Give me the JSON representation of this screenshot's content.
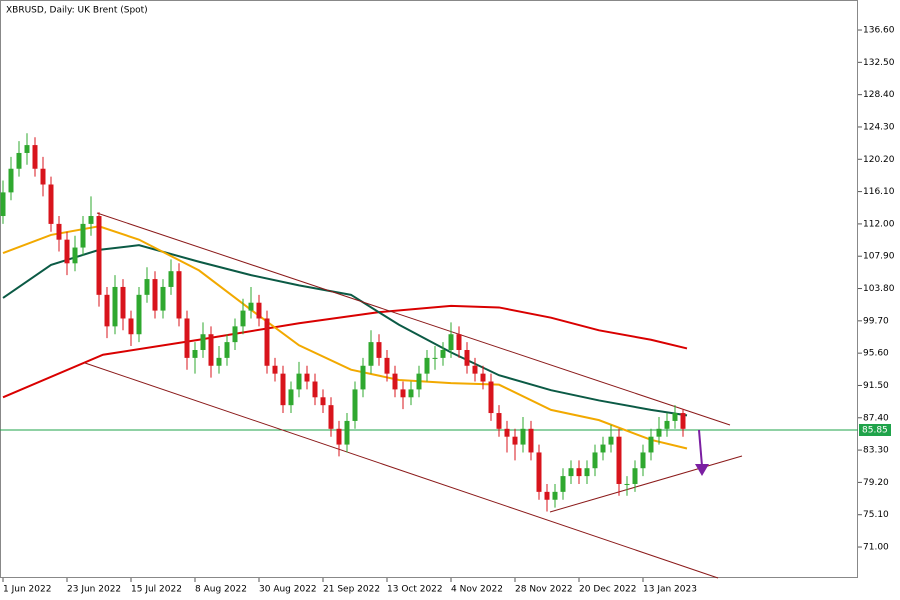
{
  "chart_data": {
    "type": "candlestick",
    "title": "XBRUSD, Daily:  UK Brent (Spot)",
    "up_color": "#2fa82f",
    "down_color": "#d8141c",
    "ylim": [
      67.07,
      140.41
    ],
    "xlim": [
      -0.75,
      213.75
    ],
    "yticks": [
      {
        "value": 136.6,
        "label": "136.60"
      },
      {
        "value": 132.5,
        "label": "132.50"
      },
      {
        "value": 128.4,
        "label": "128.40"
      },
      {
        "value": 124.3,
        "label": "124.30"
      },
      {
        "value": 120.2,
        "label": "120.20"
      },
      {
        "value": 116.1,
        "label": "116.10"
      },
      {
        "value": 112,
        "label": "112.00"
      },
      {
        "value": 107.9,
        "label": "107.90"
      },
      {
        "value": 103.8,
        "label": "103.80"
      },
      {
        "value": 99.7,
        "label": "99.70"
      },
      {
        "value": 95.6,
        "label": "95.60"
      },
      {
        "value": 91.5,
        "label": "91.50"
      },
      {
        "value": 87.4,
        "label": "87.40"
      },
      {
        "value": 83.3,
        "label": "83.30"
      },
      {
        "value": 79.2,
        "label": "79.20"
      },
      {
        "value": 75.1,
        "label": "75.10"
      },
      {
        "value": 71,
        "label": "71.00"
      }
    ],
    "xticks": [
      {
        "value": 0,
        "label": "1 Jun 2022"
      },
      {
        "value": 16,
        "label": "23 Jun 2022"
      },
      {
        "value": 32,
        "label": "15 Jul 2022"
      },
      {
        "value": 48,
        "label": "8 Aug 2022"
      },
      {
        "value": 64,
        "label": "30 Aug 2022"
      },
      {
        "value": 80,
        "label": "21 Sep 2022"
      },
      {
        "value": 96,
        "label": "13 Oct 2022"
      },
      {
        "value": 112,
        "label": "4 Nov 2022"
      },
      {
        "value": 128,
        "label": "28 Nov 2022"
      },
      {
        "value": 144,
        "label": "20 Dec 2022"
      },
      {
        "value": 160,
        "label": "13 Jan 2023"
      }
    ],
    "current_price": 85.85,
    "current_price_color": "#1fa34a",
    "x": [
      0,
      2,
      4,
      6,
      8,
      10,
      12,
      14,
      16,
      18,
      20,
      22,
      24,
      26,
      28,
      30,
      32,
      34,
      36,
      38,
      40,
      42,
      44,
      46,
      48,
      50,
      52,
      54,
      56,
      58,
      60,
      62,
      64,
      66,
      68,
      70,
      72,
      74,
      76,
      78,
      80,
      82,
      84,
      86,
      88,
      90,
      92,
      94,
      96,
      98,
      100,
      102,
      104,
      106,
      108,
      110,
      112,
      114,
      116,
      118,
      120,
      122,
      124,
      126,
      128,
      130,
      132,
      134,
      136,
      138,
      140,
      142,
      144,
      146,
      148,
      150,
      152,
      154,
      156,
      158,
      160,
      162,
      164,
      166,
      168,
      170
    ],
    "ohlc": [
      [
        113,
        117.5,
        112,
        116
      ],
      [
        116,
        120.5,
        115,
        119
      ],
      [
        119,
        122.5,
        118,
        121
      ],
      [
        121,
        123.5,
        119.5,
        122
      ],
      [
        122,
        123,
        118,
        119
      ],
      [
        119,
        120.5,
        115.5,
        117
      ],
      [
        117,
        118,
        111,
        112
      ],
      [
        112,
        113,
        108.5,
        110
      ],
      [
        110,
        111,
        105.5,
        107
      ],
      [
        107,
        110.5,
        106,
        109
      ],
      [
        109,
        113,
        108,
        112
      ],
      [
        112,
        115.5,
        110.5,
        113
      ],
      [
        113,
        113.5,
        101.5,
        103
      ],
      [
        103,
        104,
        97.5,
        99
      ],
      [
        99,
        105.5,
        98,
        104
      ],
      [
        104,
        105,
        98.5,
        100
      ],
      [
        100,
        101,
        96.5,
        98
      ],
      [
        98,
        104,
        97,
        103
      ],
      [
        103,
        106.5,
        102,
        105
      ],
      [
        105,
        106,
        100,
        101
      ],
      [
        101,
        105,
        100,
        104
      ],
      [
        104,
        107.5,
        103,
        106
      ],
      [
        106,
        107,
        99,
        100
      ],
      [
        100,
        101,
        93.5,
        95
      ],
      [
        95,
        97,
        93,
        96
      ],
      [
        96,
        99.5,
        95,
        98
      ],
      [
        98,
        99,
        92.5,
        94
      ],
      [
        94,
        96.5,
        93,
        95
      ],
      [
        95,
        98,
        94,
        97
      ],
      [
        97,
        100,
        96,
        99
      ],
      [
        99,
        102.5,
        98,
        101
      ],
      [
        101,
        104,
        100,
        102
      ],
      [
        102,
        103,
        99,
        100
      ],
      [
        100,
        101,
        93,
        94
      ],
      [
        94,
        95,
        92,
        93
      ],
      [
        93,
        94,
        88,
        89
      ],
      [
        89,
        92,
        88,
        91
      ],
      [
        91,
        94.5,
        90,
        93
      ],
      [
        93,
        94,
        91,
        92
      ],
      [
        92,
        93,
        89,
        90
      ],
      [
        90,
        91,
        88,
        89
      ],
      [
        89,
        90,
        85,
        86
      ],
      [
        86,
        87,
        82.5,
        84
      ],
      [
        84,
        88,
        83,
        87
      ],
      [
        87,
        92,
        86,
        91
      ],
      [
        91,
        95,
        90,
        94
      ],
      [
        94,
        98.5,
        93,
        97
      ],
      [
        97,
        98,
        94,
        95
      ],
      [
        95,
        96,
        92,
        93
      ],
      [
        93,
        94,
        90,
        91
      ],
      [
        91,
        92,
        88.5,
        90
      ],
      [
        90,
        92,
        89,
        91
      ],
      [
        91,
        94,
        90,
        93
      ],
      [
        93,
        96,
        92,
        95
      ],
      [
        95,
        96.5,
        93.5,
        95
      ],
      [
        95,
        97,
        94,
        96
      ],
      [
        96,
        99.5,
        95,
        98
      ],
      [
        98,
        99,
        95,
        96
      ],
      [
        96,
        97,
        93,
        94
      ],
      [
        94,
        95,
        92,
        93
      ],
      [
        93,
        94,
        91,
        92
      ],
      [
        92,
        93,
        87,
        88
      ],
      [
        88,
        89,
        85,
        86
      ],
      [
        86,
        87,
        83,
        85
      ],
      [
        85,
        86,
        82,
        84
      ],
      [
        84,
        87.5,
        83,
        86
      ],
      [
        86,
        87,
        82,
        83
      ],
      [
        83,
        84,
        77,
        78
      ],
      [
        78,
        79,
        75.5,
        77
      ],
      [
        77,
        79,
        76,
        78
      ],
      [
        78,
        81,
        77,
        80
      ],
      [
        80,
        82,
        79,
        81
      ],
      [
        81,
        82,
        79,
        80
      ],
      [
        80,
        82,
        79,
        81
      ],
      [
        81,
        84,
        80,
        83
      ],
      [
        83,
        85,
        82,
        84
      ],
      [
        84,
        86.5,
        83,
        85
      ],
      [
        85,
        86,
        77.5,
        79
      ],
      [
        79,
        80,
        77.5,
        79
      ],
      [
        79,
        82,
        78,
        81
      ],
      [
        81,
        84,
        80,
        83
      ],
      [
        83,
        86,
        82,
        85
      ],
      [
        85,
        87.5,
        84,
        86
      ],
      [
        86,
        88,
        85,
        87
      ],
      [
        87,
        89,
        86,
        88
      ],
      [
        88,
        88.5,
        85,
        86
      ]
    ],
    "moving_averages": [
      {
        "color": "#d90000",
        "x": [
          0,
          25,
          49,
          74,
          94,
          112,
          124,
          137,
          149,
          162,
          171
        ],
        "values": [
          90,
          95.4,
          97.3,
          99.4,
          100.8,
          101.6,
          101.4,
          100.1,
          98.5,
          97.3,
          96.2
        ]
      },
      {
        "color": "#0b5a45",
        "x": [
          0,
          12,
          24,
          34,
          49,
          62,
          74,
          87,
          99,
          112,
          124,
          137,
          149,
          162,
          171
        ],
        "values": [
          102.6,
          106.8,
          108.7,
          109.3,
          107.2,
          105.5,
          104.2,
          103,
          99.2,
          95.7,
          92.8,
          90.9,
          89.6,
          88.4,
          87.7
        ]
      },
      {
        "color": "#f2a900",
        "x": [
          0,
          12,
          24,
          34,
          49,
          62,
          74,
          87,
          99,
          112,
          124,
          137,
          149,
          162,
          171
        ],
        "values": [
          108.3,
          110.6,
          111.7,
          110,
          106.1,
          101.1,
          96.6,
          93.5,
          92.2,
          91.8,
          91.6,
          88.4,
          87.1,
          84.6,
          83.5
        ]
      }
    ]
  }
}
